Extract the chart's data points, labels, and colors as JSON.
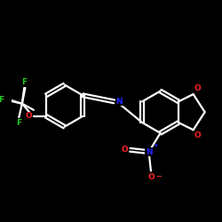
{
  "bg": "#000000",
  "bc": "#ffffff",
  "nc": "#2222ff",
  "oc": "#ff2222",
  "fc": "#22cc22",
  "lw": 1.6,
  "fs": 6.5,
  "fs_small": 5.0,
  "xlim": [
    -1.5,
    8.5
  ],
  "ylim": [
    -4.5,
    5.0
  ]
}
